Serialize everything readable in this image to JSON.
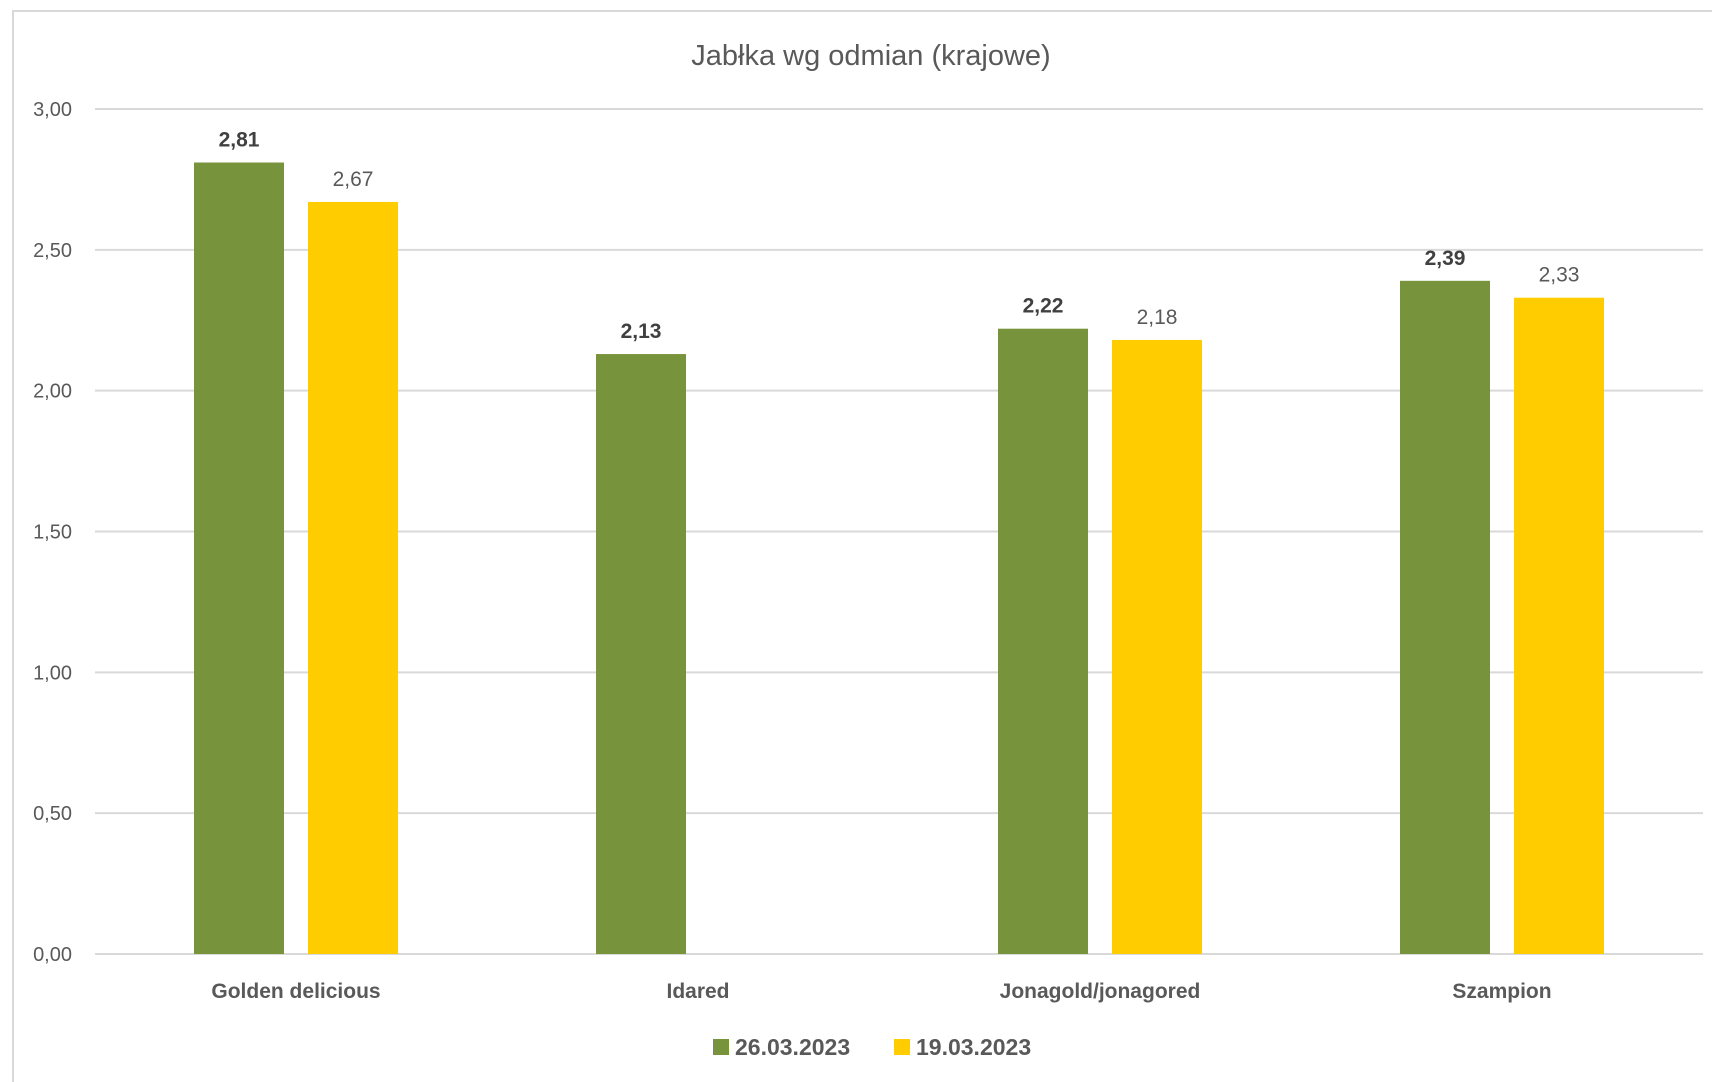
{
  "chart_data": {
    "type": "bar",
    "title": "Jabłka wg odmian (krajowe)",
    "categories": [
      "Golden delicious",
      "Idared",
      "Jonagold/jonagored",
      "Szampion"
    ],
    "series": [
      {
        "name": "26.03.2023",
        "color": "#77933c",
        "values": [
          2.81,
          2.13,
          2.22,
          2.39
        ],
        "labels": [
          "2,81",
          "2,13",
          "2,22",
          "2,39"
        ],
        "label_style": "bold"
      },
      {
        "name": "19.03.2023",
        "color": "#ffcc00",
        "values": [
          2.67,
          null,
          2.18,
          2.33
        ],
        "labels": [
          "2,67",
          "",
          "2,18",
          "2,33"
        ],
        "label_style": "normal"
      }
    ],
    "ylim": [
      0,
      3
    ],
    "yticks": [
      0,
      0.5,
      1,
      1.5,
      2,
      2.5,
      3
    ],
    "ytick_labels": [
      "0,00",
      "0,50",
      "1,00",
      "1,50",
      "2,00",
      "2,50",
      "3,00"
    ],
    "grid": true,
    "legend_position": "bottom",
    "xlabel": "",
    "ylabel": ""
  }
}
